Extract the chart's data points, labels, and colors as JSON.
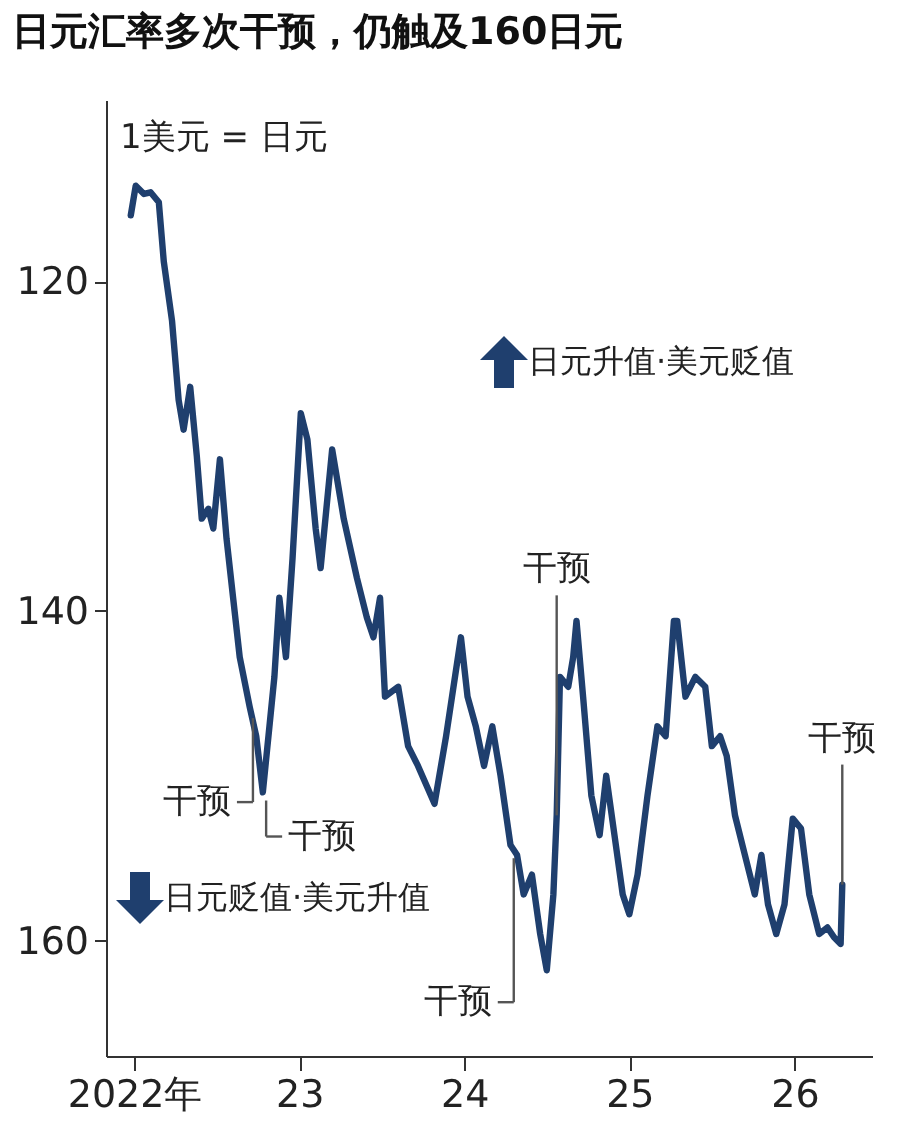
{
  "chart_data": {
    "type": "line",
    "title": "日元汇率多次干预，仍触及160日元",
    "ylabel": "1美元 = 日元",
    "xlim": [
      2021.83,
      2026.47
    ],
    "xticks": [
      {
        "value": 2022,
        "label": "2022年"
      },
      {
        "value": 2023,
        "label": "23"
      },
      {
        "value": 2024,
        "label": "24"
      },
      {
        "value": 2025,
        "label": "25"
      },
      {
        "value": 2026,
        "label": "26"
      }
    ],
    "ylim": [
      167,
      109
    ],
    "yticks": [
      120,
      140,
      160
    ],
    "grid": false,
    "series": [
      {
        "color": "#1f3f6e",
        "x": [
          2021.98,
          2022.01,
          2022.06,
          2022.1,
          2022.15,
          2022.18,
          2022.23,
          2022.27,
          2022.3,
          2022.34,
          2022.38,
          2022.41,
          2022.45,
          2022.48,
          2022.52,
          2022.56,
          2022.6,
          2022.64,
          2022.7,
          2022.74,
          2022.78,
          2022.82,
          2022.85,
          2022.88,
          2022.92,
          2022.96,
          2023.01,
          2023.05,
          2023.1,
          2023.13,
          2023.2,
          2023.27,
          2023.35,
          2023.41,
          2023.45,
          2023.49,
          2023.52,
          2023.6,
          2023.66,
          2023.72,
          2023.82,
          2023.89,
          2023.98,
          2024.02,
          2024.07,
          2024.12,
          2024.17,
          2024.22,
          2024.28,
          2024.32,
          2024.36,
          2024.41,
          2024.46,
          2024.5,
          2024.54,
          2024.56,
          2024.58,
          2024.63,
          2024.66,
          2024.68,
          2024.72,
          2024.77,
          2024.82,
          2024.86,
          2024.91,
          2024.96,
          2025.0,
          2025.05,
          2025.11,
          2025.17,
          2025.22,
          2025.27,
          2025.29,
          2025.34,
          2025.4,
          2025.46,
          2025.5,
          2025.55,
          2025.59,
          2025.64,
          2025.7,
          2025.76,
          2025.8,
          2025.84,
          2025.89,
          2025.94,
          2025.99,
          2026.04,
          2026.09,
          2026.15,
          2026.2,
          2026.24,
          2026.28,
          2026.29
        ],
        "values": [
          116.0,
          114.2,
          114.7,
          114.6,
          115.2,
          118.8,
          122.4,
          127.2,
          129.0,
          126.4,
          130.6,
          134.4,
          133.8,
          135.0,
          130.8,
          135.6,
          139.2,
          142.8,
          145.8,
          147.6,
          151.0,
          147.0,
          144.0,
          139.2,
          142.8,
          136.8,
          128.0,
          129.6,
          135.0,
          137.4,
          130.2,
          134.4,
          138.0,
          140.4,
          141.6,
          139.2,
          145.2,
          144.6,
          148.2,
          149.4,
          151.7,
          147.6,
          141.6,
          145.2,
          147.0,
          149.4,
          147.0,
          150.0,
          154.2,
          154.8,
          157.2,
          156.0,
          159.6,
          161.8,
          157.2,
          152.4,
          144.0,
          144.6,
          142.8,
          140.6,
          145.2,
          151.2,
          153.6,
          150.0,
          153.6,
          157.2,
          158.4,
          156.0,
          151.2,
          147.0,
          147.6,
          140.6,
          140.6,
          145.2,
          144.0,
          144.6,
          148.2,
          147.6,
          148.8,
          152.4,
          154.8,
          157.2,
          154.8,
          157.8,
          159.6,
          157.8,
          152.6,
          153.2,
          157.2,
          159.6,
          159.2,
          159.8,
          160.2,
          156.6
        ]
      }
    ],
    "annotations": [
      {
        "text": "干预",
        "x": 2022.72,
        "y": 146.5
      },
      {
        "text": "干预",
        "x": 2022.8,
        "y": 151.5
      },
      {
        "text": "干预",
        "x": 2024.3,
        "y": 155.0
      },
      {
        "text": "干预",
        "x": 2024.56,
        "y": 152.4
      },
      {
        "text": "干预",
        "x": 2026.29,
        "y": 156.6
      },
      "日元升值·美元贬值",
      "日元贬值·美元升值"
    ]
  }
}
